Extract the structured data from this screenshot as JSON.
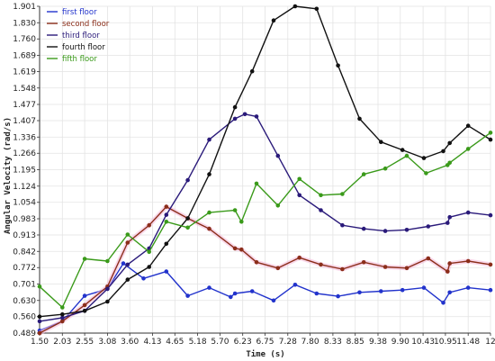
{
  "chart_data": {
    "type": "line",
    "xlabel": "Time (s)",
    "ylabel": "Angular Velocity (rad/s)",
    "x_tick_labels": [
      "1.50",
      "2.03",
      "2.55",
      "3.08",
      "3.60",
      "4.13",
      "4.65",
      "5.18",
      "5.70",
      "6.23",
      "6.75",
      "7.28",
      "7.80",
      "8.33",
      "8.85",
      "9.38",
      "9.90",
      "10.43",
      "10.95",
      "11.48",
      "12"
    ],
    "y_ticks": [
      0.489,
      0.56,
      0.63,
      0.701,
      0.772,
      0.842,
      0.913,
      0.983,
      1.054,
      1.124,
      1.195,
      1.266,
      1.336,
      1.407,
      1.477,
      1.548,
      1.619,
      1.689,
      1.76,
      1.83,
      1.901
    ],
    "xlim": [
      1.5,
      12.0
    ],
    "ylim": [
      0.489,
      1.901
    ],
    "grid": true,
    "legend_position": "top-left",
    "series": [
      {
        "name": "first floor",
        "color": "#2233cc",
        "points": [
          [
            1.5,
            0.5
          ],
          [
            2.03,
            0.54
          ],
          [
            2.55,
            0.65
          ],
          [
            3.08,
            0.68
          ],
          [
            3.45,
            0.79
          ],
          [
            3.92,
            0.725
          ],
          [
            4.45,
            0.755
          ],
          [
            4.95,
            0.65
          ],
          [
            5.45,
            0.685
          ],
          [
            5.95,
            0.645
          ],
          [
            6.05,
            0.66
          ],
          [
            6.45,
            0.67
          ],
          [
            6.95,
            0.63
          ],
          [
            7.45,
            0.698
          ],
          [
            7.95,
            0.66
          ],
          [
            8.45,
            0.648
          ],
          [
            8.95,
            0.665
          ],
          [
            9.45,
            0.67
          ],
          [
            9.95,
            0.675
          ],
          [
            10.45,
            0.685
          ],
          [
            10.9,
            0.62
          ],
          [
            11.05,
            0.665
          ],
          [
            11.48,
            0.685
          ],
          [
            12.0,
            0.675
          ]
        ]
      },
      {
        "name": "second floor",
        "color": "#8b2e1a",
        "points": [
          [
            1.5,
            0.489
          ],
          [
            2.03,
            0.54
          ],
          [
            2.55,
            0.61
          ],
          [
            3.08,
            0.69
          ],
          [
            3.55,
            0.88
          ],
          [
            4.05,
            0.955
          ],
          [
            4.45,
            1.035
          ],
          [
            4.95,
            0.985
          ],
          [
            5.45,
            0.94
          ],
          [
            6.05,
            0.855
          ],
          [
            6.2,
            0.85
          ],
          [
            6.55,
            0.795
          ],
          [
            7.05,
            0.77
          ],
          [
            7.55,
            0.815
          ],
          [
            8.05,
            0.785
          ],
          [
            8.55,
            0.765
          ],
          [
            9.05,
            0.795
          ],
          [
            9.55,
            0.775
          ],
          [
            10.05,
            0.77
          ],
          [
            10.55,
            0.812
          ],
          [
            11.0,
            0.755
          ],
          [
            11.05,
            0.79
          ],
          [
            11.48,
            0.8
          ],
          [
            12.0,
            0.785
          ]
        ]
      },
      {
        "name": "third floor",
        "color": "#2a1a7a",
        "points": [
          [
            1.5,
            0.54
          ],
          [
            2.03,
            0.555
          ],
          [
            2.55,
            0.585
          ],
          [
            3.08,
            0.68
          ],
          [
            3.55,
            0.785
          ],
          [
            4.05,
            0.855
          ],
          [
            4.45,
            1.0
          ],
          [
            4.95,
            1.15
          ],
          [
            5.45,
            1.325
          ],
          [
            6.05,
            1.415
          ],
          [
            6.28,
            1.435
          ],
          [
            6.55,
            1.425
          ],
          [
            7.05,
            1.255
          ],
          [
            7.55,
            1.085
          ],
          [
            8.05,
            1.02
          ],
          [
            8.55,
            0.955
          ],
          [
            9.05,
            0.94
          ],
          [
            9.55,
            0.93
          ],
          [
            10.05,
            0.935
          ],
          [
            10.55,
            0.95
          ],
          [
            11.0,
            0.965
          ],
          [
            11.05,
            0.99
          ],
          [
            11.48,
            1.01
          ],
          [
            12.0,
            0.998
          ]
        ]
      },
      {
        "name": "fourth floor",
        "color": "#111111",
        "points": [
          [
            1.5,
            0.56
          ],
          [
            2.03,
            0.57
          ],
          [
            2.55,
            0.585
          ],
          [
            3.08,
            0.625
          ],
          [
            3.55,
            0.72
          ],
          [
            4.05,
            0.775
          ],
          [
            4.45,
            0.875
          ],
          [
            4.95,
            0.985
          ],
          [
            5.45,
            1.175
          ],
          [
            6.05,
            1.465
          ],
          [
            6.45,
            1.62
          ],
          [
            6.95,
            1.84
          ],
          [
            7.45,
            1.901
          ],
          [
            7.95,
            1.89
          ],
          [
            8.45,
            1.645
          ],
          [
            8.95,
            1.415
          ],
          [
            9.45,
            1.315
          ],
          [
            9.95,
            1.28
          ],
          [
            10.45,
            1.245
          ],
          [
            10.9,
            1.275
          ],
          [
            11.05,
            1.31
          ],
          [
            11.48,
            1.385
          ],
          [
            12.0,
            1.325
          ]
        ]
      },
      {
        "name": "fifth floor",
        "color": "#3a9a1a",
        "points": [
          [
            1.5,
            0.69
          ],
          [
            2.03,
            0.6
          ],
          [
            2.55,
            0.81
          ],
          [
            3.08,
            0.8
          ],
          [
            3.55,
            0.915
          ],
          [
            4.05,
            0.84
          ],
          [
            4.45,
            0.97
          ],
          [
            4.95,
            0.945
          ],
          [
            5.45,
            1.01
          ],
          [
            6.05,
            1.02
          ],
          [
            6.2,
            0.97
          ],
          [
            6.55,
            1.135
          ],
          [
            7.05,
            1.04
          ],
          [
            7.55,
            1.155
          ],
          [
            8.05,
            1.085
          ],
          [
            8.55,
            1.09
          ],
          [
            9.05,
            1.175
          ],
          [
            9.55,
            1.2
          ],
          [
            10.05,
            1.255
          ],
          [
            10.5,
            1.18
          ],
          [
            11.0,
            1.215
          ],
          [
            11.05,
            1.225
          ],
          [
            11.48,
            1.285
          ],
          [
            12.0,
            1.355
          ]
        ]
      }
    ]
  }
}
